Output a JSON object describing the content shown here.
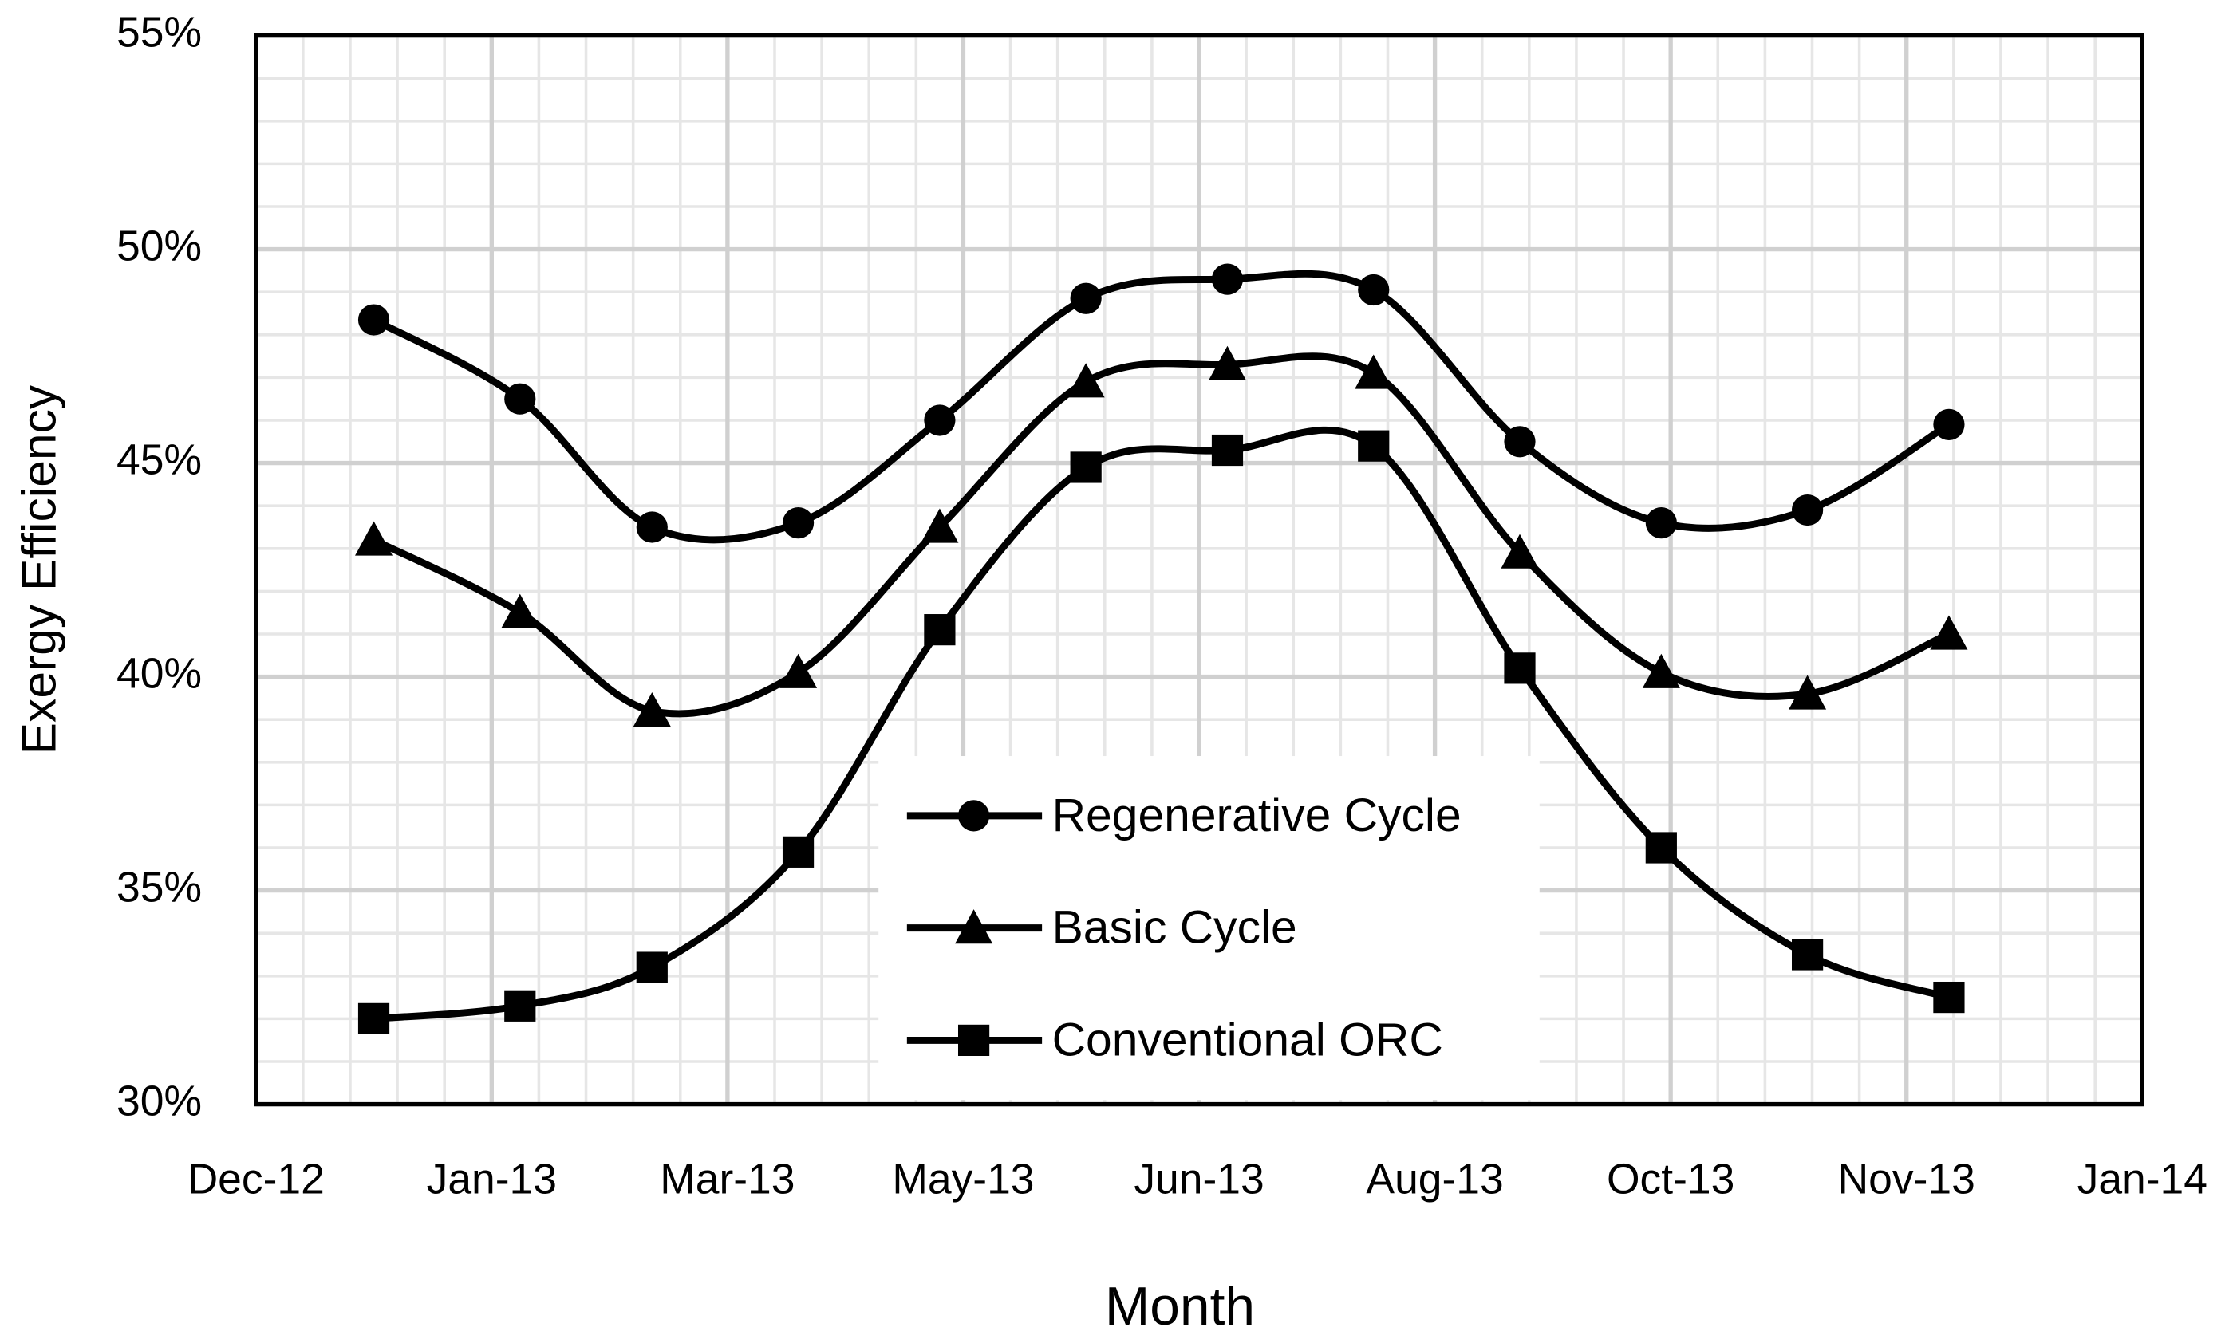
{
  "chart_data": {
    "type": "line",
    "x_label": "Month",
    "y_label": "Exergy Efficiency",
    "xlim": [
      0,
      400
    ],
    "xticks": [
      {
        "value": 0,
        "label": "Dec-12"
      },
      {
        "value": 50,
        "label": "Jan-13"
      },
      {
        "value": 100,
        "label": "Mar-13"
      },
      {
        "value": 150,
        "label": "May-13"
      },
      {
        "value": 200,
        "label": "Jun-13"
      },
      {
        "value": 250,
        "label": "Aug-13"
      },
      {
        "value": 300,
        "label": "Oct-13"
      },
      {
        "value": 350,
        "label": "Nov-13"
      },
      {
        "value": 400,
        "label": "Jan-14"
      }
    ],
    "ylim": [
      30,
      55
    ],
    "yticks": [
      {
        "value": 30,
        "label": "30%"
      },
      {
        "value": 35,
        "label": "35%"
      },
      {
        "value": 40,
        "label": "40%"
      },
      {
        "value": 45,
        "label": "45%"
      },
      {
        "value": 50,
        "label": "50%"
      },
      {
        "value": 55,
        "label": "55%"
      }
    ],
    "grid": true,
    "minor_grid": true,
    "smooth": true,
    "legend": "lower center",
    "x": [
      25,
      56,
      84,
      115,
      145,
      176,
      206,
      237,
      268,
      298,
      329,
      359
    ],
    "series": [
      {
        "name": "Regenerative Cycle",
        "color": "#000000",
        "marker": "circle",
        "values": [
          48.35,
          46.5,
          43.5,
          43.6,
          46.0,
          48.85,
          49.3,
          49.05,
          45.5,
          43.6,
          43.9,
          45.9
        ]
      },
      {
        "name": "Basic Cycle",
        "color": "#000000",
        "marker": "triangle",
        "values": [
          43.2,
          41.5,
          39.2,
          40.1,
          43.5,
          46.9,
          47.3,
          47.1,
          42.9,
          40.1,
          39.6,
          41.0
        ]
      },
      {
        "name": "Conventional ORC",
        "color": "#000000",
        "marker": "square",
        "values": [
          32.0,
          32.3,
          33.2,
          35.9,
          41.1,
          44.9,
          45.3,
          45.4,
          40.2,
          36.0,
          33.5,
          32.5
        ]
      }
    ]
  }
}
